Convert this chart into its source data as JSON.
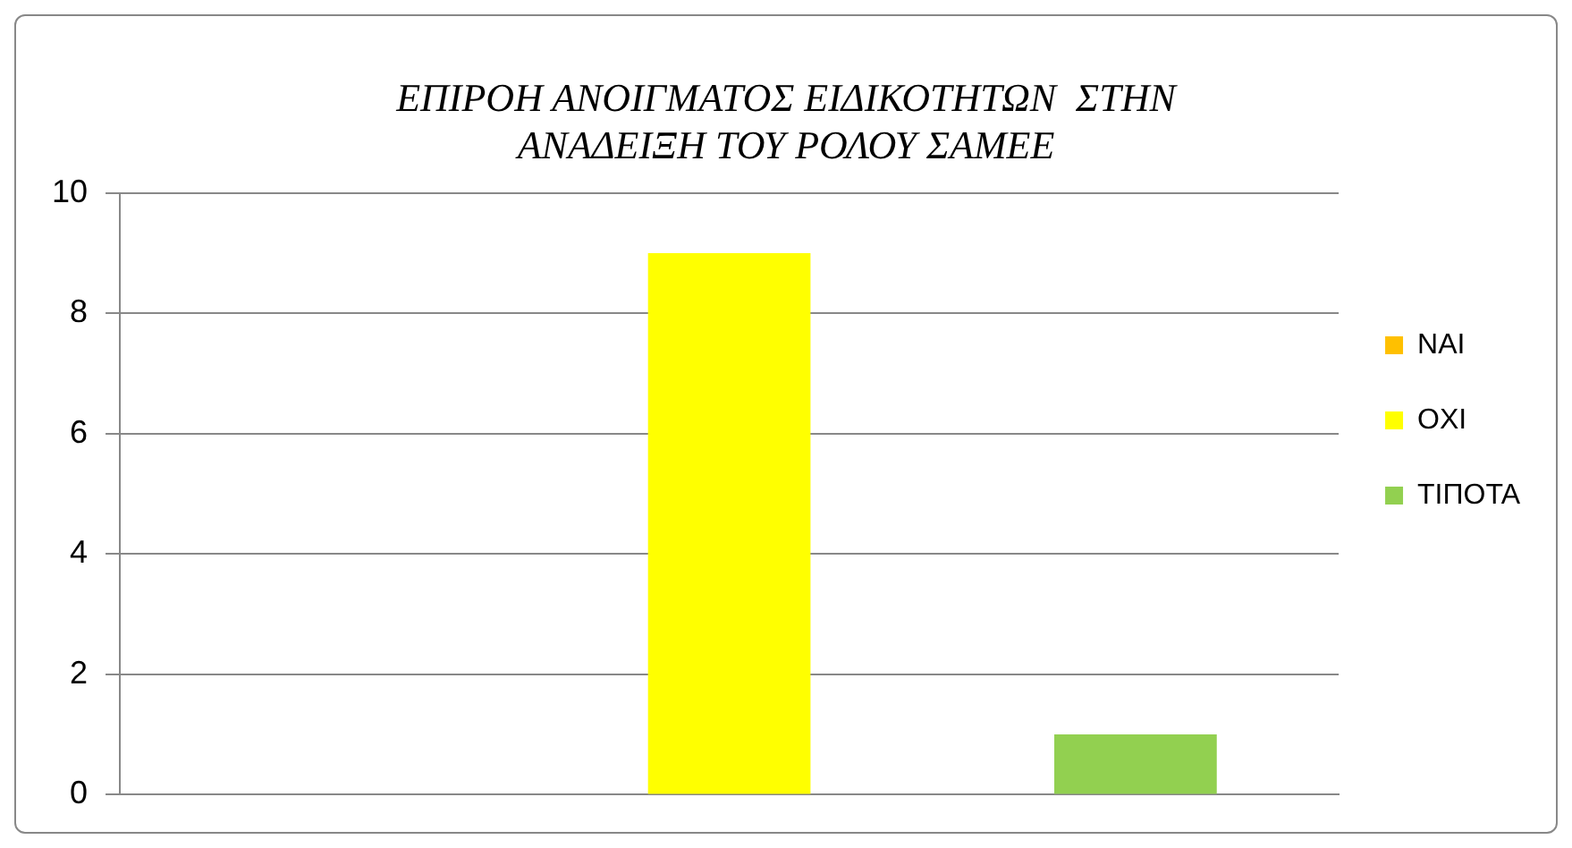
{
  "chart_data": {
    "type": "bar",
    "title": "ΕΠΙΡΟΗ ΑΝΟΙΓΜΑΤΟΣ ΕΙΔΙΚΟΤΗΤΩΝ  ΣΤΗΝ\nΑΝΑΔΕΙΞΗ ΤΟΥ ΡΟΛΟΥ ΣΑΜΕΕ",
    "categories": [
      null,
      null,
      null
    ],
    "series": [
      {
        "name": "ΝΑΙ",
        "color": "#ffc000",
        "values": [
          0,
          null,
          null
        ]
      },
      {
        "name": "ΟΧΙ",
        "color": "#ffff00",
        "values": [
          null,
          9,
          null
        ]
      },
      {
        "name": "ΤΙΠΟΤΑ",
        "color": "#92d050",
        "values": [
          null,
          null,
          1
        ]
      }
    ],
    "ylim": [
      0,
      10
    ],
    "yticks": [
      0,
      2,
      4,
      6,
      8,
      10
    ],
    "grid": "y",
    "legend": "right"
  }
}
